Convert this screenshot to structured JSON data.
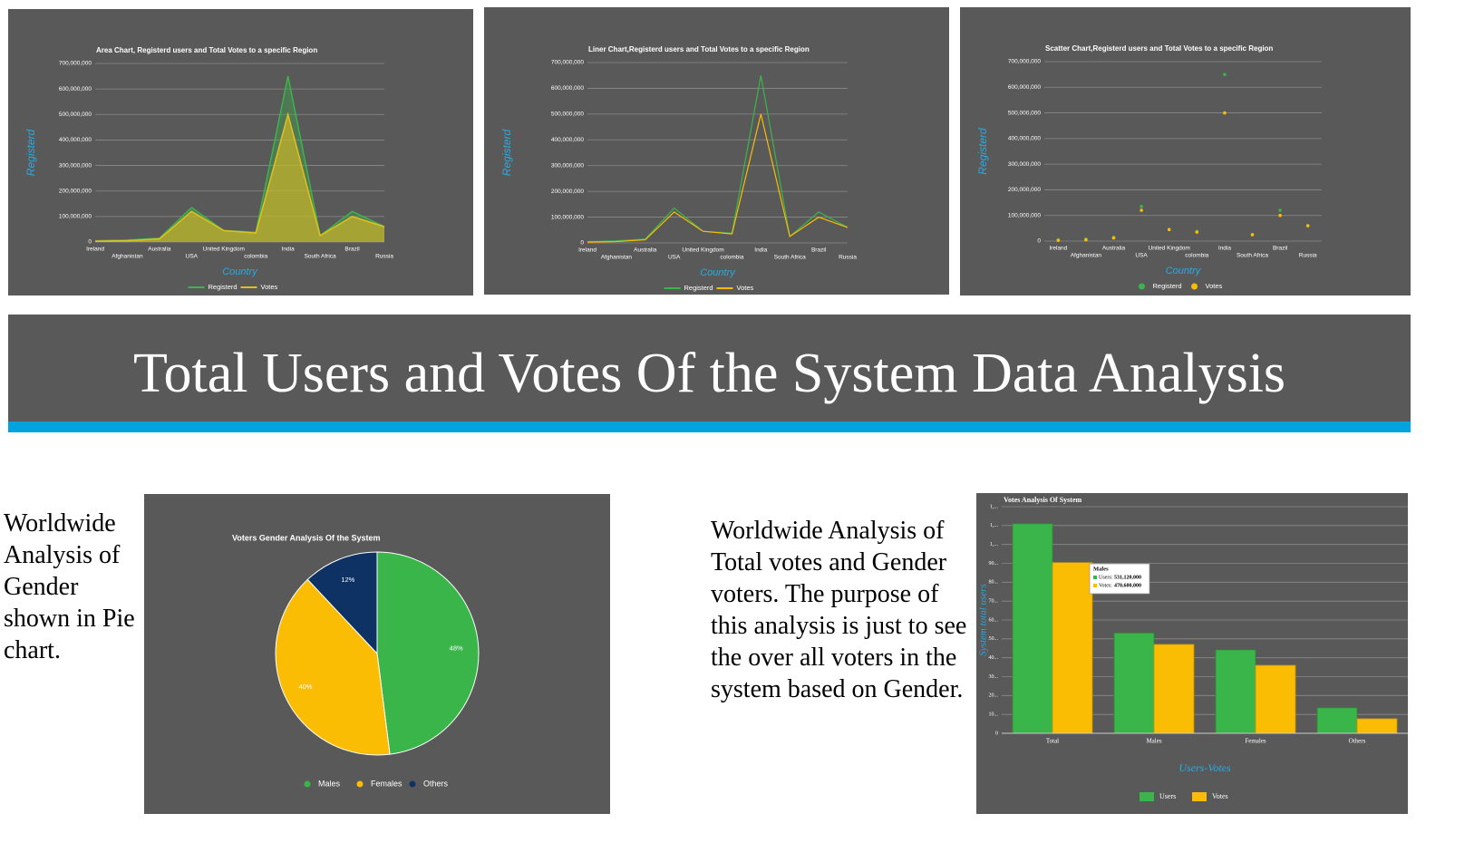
{
  "heading": "Total Users and Votes Of the System Data Analysis",
  "texts": [
    "Worldwide Analysis of Gender shown in Pie chart.",
    "Worldwide Analysis of Total votes and Gender voters. The purpose of this analysis is just to see the over all voters in the system based on Gender."
  ],
  "chart_data": [
    {
      "type": "area",
      "title": "Area Chart, Registerd users and Total Votes to a specific Region",
      "x_label": "Country",
      "y_label": "Registerd",
      "categories": [
        "Ireland",
        "Afghanistan",
        "Australia",
        "USA",
        "United Kingdom",
        "colombia",
        "India",
        "South Africa",
        "Brazil",
        "Russia"
      ],
      "series": [
        {
          "name": "Registerd",
          "color": "#3cb44b",
          "values": [
            5000000,
            8000000,
            15000000,
            135000000,
            45000000,
            38000000,
            650000000,
            25000000,
            120000000,
            60000000
          ]
        },
        {
          "name": "Votes",
          "color": "#e0c020",
          "values": [
            3000000,
            5000000,
            12000000,
            120000000,
            45000000,
            35000000,
            500000000,
            25000000,
            100000000,
            60000000
          ]
        }
      ],
      "ylim": [
        0,
        700000000
      ],
      "yticks": [
        0,
        {
          "value": 100000000,
          "label": "100,000,000"
        },
        {
          "value": 200000000,
          "label": "200,000,000"
        },
        {
          "value": 300000000,
          "label": "300,000,000"
        },
        {
          "value": 400000000,
          "label": "400,000,000"
        },
        {
          "value": 500000000,
          "label": "500,000,000"
        },
        {
          "value": 600000000,
          "label": "600,000,000"
        },
        {
          "value": 700000000,
          "label": "700,000,000"
        }
      ],
      "grid": true,
      "legend": "bottom"
    },
    {
      "type": "line",
      "title": "Liner Chart,Registerd users and Total Votes to a specific Region",
      "x_label": "Country",
      "y_label": "Registerd",
      "categories": [
        "Ireland",
        "Afghanistan",
        "Australia",
        "USA",
        "United Kingdom",
        "colombia",
        "India",
        "South Africa",
        "Brazil",
        "Russia"
      ],
      "series": [
        {
          "name": "Registerd",
          "color": "#3cb44b",
          "values": [
            5000000,
            8000000,
            15000000,
            135000000,
            45000000,
            38000000,
            650000000,
            25000000,
            120000000,
            60000000
          ]
        },
        {
          "name": "Votes",
          "color": "#fbbc04",
          "values": [
            3000000,
            5000000,
            12000000,
            120000000,
            45000000,
            35000000,
            500000000,
            25000000,
            100000000,
            60000000
          ]
        }
      ],
      "ylim": [
        0,
        700000000
      ],
      "yticks": [
        0,
        {
          "value": 100000000,
          "label": "100,000,000"
        },
        {
          "value": 200000000,
          "label": "200,000,000"
        },
        {
          "value": 300000000,
          "label": "300,000,000"
        },
        {
          "value": 400000000,
          "label": "400,000,000"
        },
        {
          "value": 500000000,
          "label": "500,000,000"
        },
        {
          "value": 600000000,
          "label": "600,000,000"
        },
        {
          "value": 700000000,
          "label": "700,000,000"
        }
      ],
      "grid": true,
      "legend": "bottom"
    },
    {
      "type": "scatter",
      "title": "Scatter Chart,Registerd users and Total Votes to a specific Region",
      "x_label": "Country",
      "y_label": "Registerd",
      "categories": [
        "Ireland",
        "Afghanistan",
        "Australia",
        "USA",
        "United Kingdom",
        "colombia",
        "India",
        "South Africa",
        "Brazil",
        "Russia"
      ],
      "series": [
        {
          "name": "Registerd",
          "color": "#3cb44b",
          "values": [
            5000000,
            8000000,
            15000000,
            135000000,
            45000000,
            38000000,
            650000000,
            25000000,
            120000000,
            60000000
          ]
        },
        {
          "name": "Votes",
          "color": "#fbbc04",
          "values": [
            3000000,
            5000000,
            12000000,
            120000000,
            45000000,
            35000000,
            500000000,
            25000000,
            100000000,
            60000000
          ]
        }
      ],
      "ylim": [
        0,
        700000000
      ],
      "yticks": [
        0,
        {
          "value": 100000000,
          "label": "100,000,000"
        },
        {
          "value": 200000000,
          "label": "200,000,000"
        },
        {
          "value": 300000000,
          "label": "300,000,000"
        },
        {
          "value": 400000000,
          "label": "400,000,000"
        },
        {
          "value": 500000000,
          "label": "500,000,000"
        },
        {
          "value": 600000000,
          "label": "600,000,000"
        },
        {
          "value": 700000000,
          "label": "700,000,000"
        }
      ],
      "grid": true,
      "legend": "bottom"
    },
    {
      "type": "pie",
      "title": "Voters Gender Analysis Of the System",
      "categories": [
        "Males",
        "Females",
        "Others"
      ],
      "values": [
        48,
        40,
        12
      ],
      "value_labels": [
        "48%",
        "40%",
        "12%"
      ],
      "colors": [
        "#39b54a",
        "#fbbc04",
        "#0d3263"
      ],
      "legend": "bottom"
    },
    {
      "type": "bar",
      "title": "Votes Analysis Of System",
      "x_label": "Users-Votes",
      "y_label": "System total users",
      "categories": [
        "Total",
        "Males",
        "Females",
        "Others"
      ],
      "series": [
        {
          "name": "Users",
          "color": "#39b54a",
          "values": [
            1110000000,
            531120000,
            442000000,
            135000000
          ]
        },
        {
          "name": "Votes",
          "color": "#fbbc04",
          "values": [
            904000000,
            470600000,
            360000000,
            77000000
          ]
        }
      ],
      "ylim": [
        0,
        1200000000
      ],
      "yticks": [
        0,
        {
          "value": 100000000,
          "label": "10..."
        },
        {
          "value": 200000000,
          "label": "20..."
        },
        {
          "value": 300000000,
          "label": "30..."
        },
        {
          "value": 400000000,
          "label": "40..."
        },
        {
          "value": 500000000,
          "label": "50..."
        },
        {
          "value": 600000000,
          "label": "60..."
        },
        {
          "value": 700000000,
          "label": "70..."
        },
        {
          "value": 800000000,
          "label": "80..."
        },
        {
          "value": 900000000,
          "label": "90..."
        },
        {
          "value": 1000000000,
          "label": "1,..."
        },
        {
          "value": 1100000000,
          "label": "1,..."
        },
        {
          "value": 1200000000,
          "label": "1,..."
        }
      ],
      "grid": true,
      "legend": "bottom",
      "tooltip": {
        "title": "Males",
        "rows": [
          {
            "label": "Users:",
            "value": "531,120,000"
          },
          {
            "label": "Votes:",
            "value": "470,600,000"
          }
        ]
      }
    }
  ]
}
